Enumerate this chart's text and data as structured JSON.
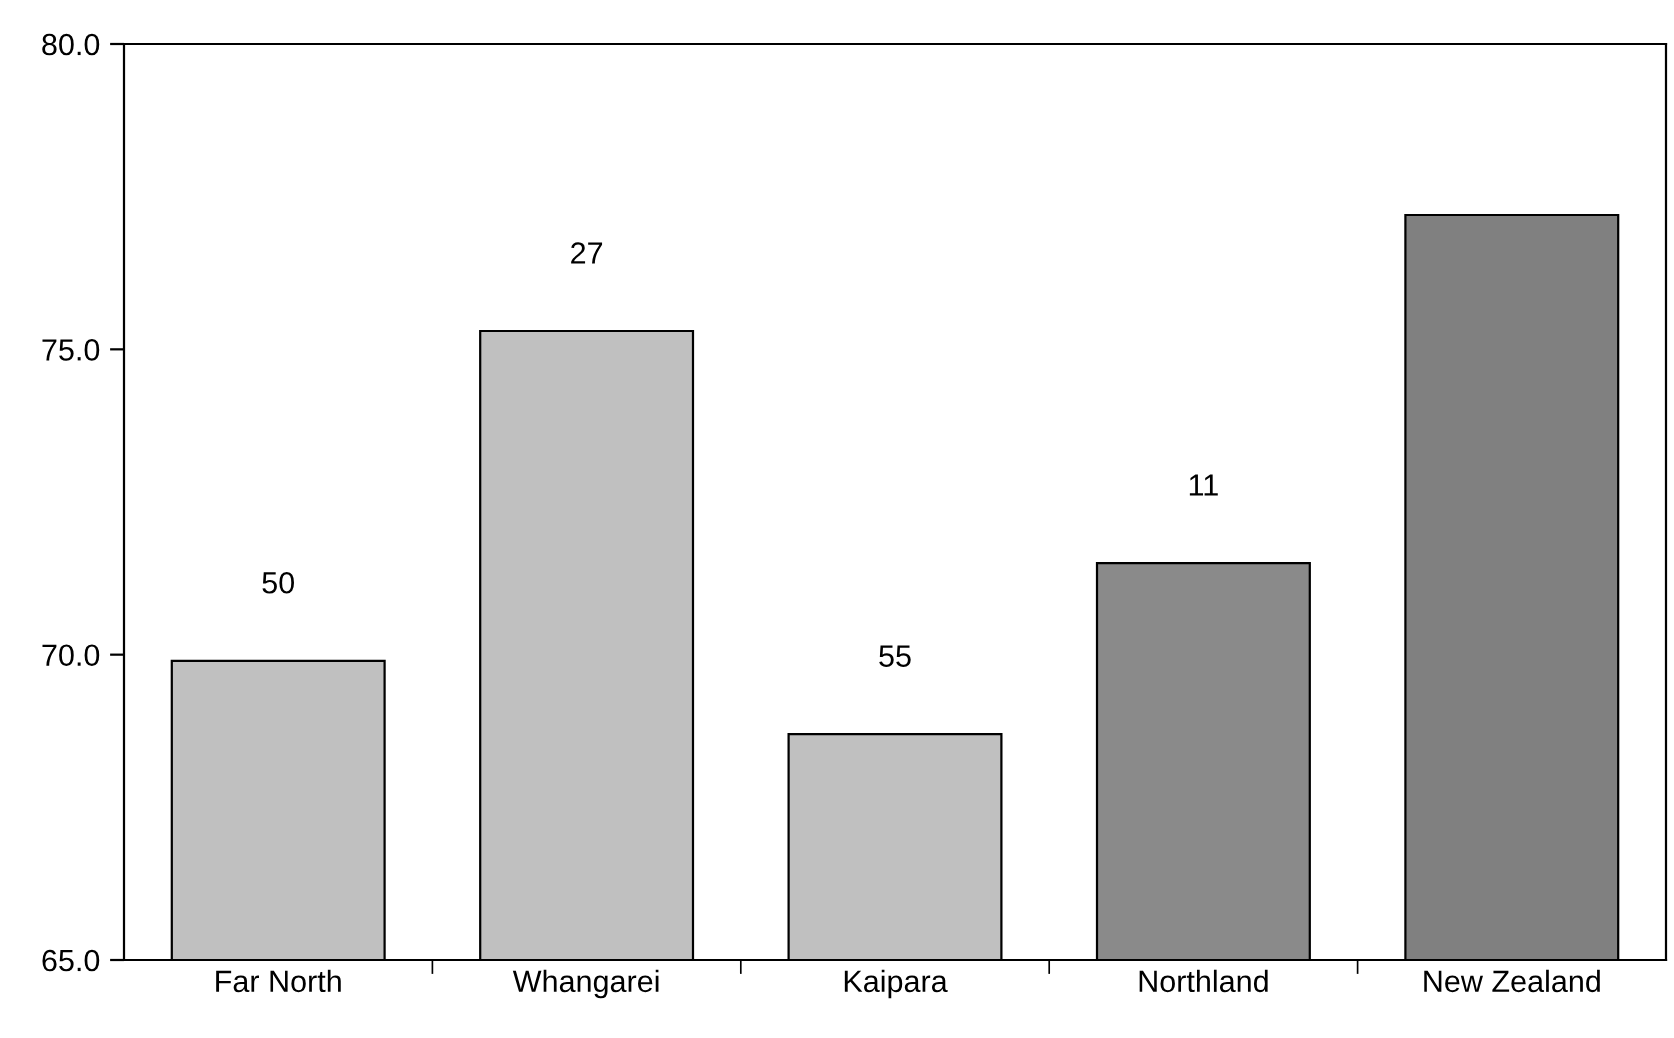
{
  "chart_data": {
    "type": "bar",
    "categories": [
      "Far North",
      "Whangarei",
      "Kaipara",
      "Northland",
      "New Zealand"
    ],
    "values": [
      69.9,
      75.3,
      68.7,
      71.5,
      77.2
    ],
    "colors": [
      "#c0c0c0",
      "#c0c0c0",
      "#c0c0c0",
      "#8a8a8a",
      "#808080"
    ],
    "annotations": [
      {
        "text": "50",
        "x": "Far North",
        "y": 69.9
      },
      {
        "text": "27",
        "x": "Whangarei",
        "y": 75.3
      },
      {
        "text": "55",
        "x": "Kaipara",
        "y": 68.7
      },
      {
        "text": "11",
        "x": "Northland",
        "y": 71.5
      }
    ],
    "ylim": [
      65,
      80
    ],
    "yticks": [
      {
        "value": 65,
        "label": "65.0"
      },
      {
        "value": 70,
        "label": "70.0"
      },
      {
        "value": 75,
        "label": "75.0"
      },
      {
        "value": 80,
        "label": "80.0"
      }
    ],
    "grid": false
  }
}
